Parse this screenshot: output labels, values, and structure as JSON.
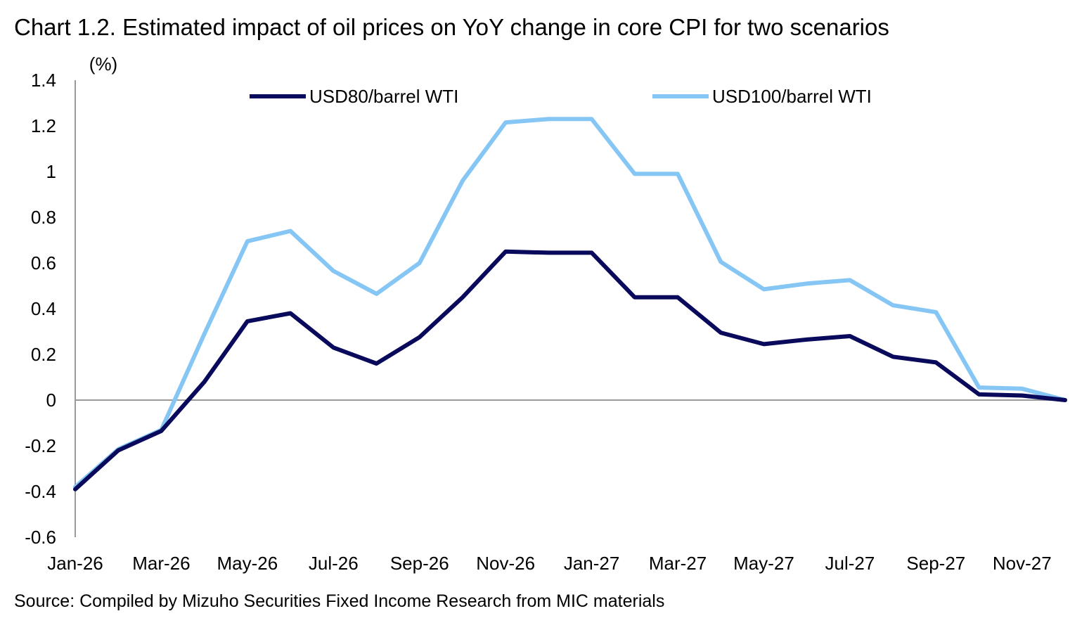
{
  "title": "Chart 1.2. Estimated impact of oil prices on YoY change in core CPI for two scenarios",
  "source": "Source: Compiled by Mizuho Securities Fixed Income Research from MIC materials",
  "chart_data": {
    "type": "line",
    "title": "Chart 1.2. Estimated impact of oil prices on YoY change in core CPI for two scenarios",
    "ylabel": "(%)",
    "xlabel": "",
    "ylim": [
      -0.6,
      1.4
    ],
    "yticks": [
      -0.6,
      -0.4,
      -0.2,
      0,
      0.2,
      0.4,
      0.6,
      0.8,
      1,
      1.2,
      1.4
    ],
    "ytick_labels": [
      "-0.6",
      "-0.4",
      "-0.2",
      "0",
      "0.2",
      "0.4",
      "0.6",
      "0.8",
      "1",
      "1.2",
      "1.4"
    ],
    "x": [
      "Jan-26",
      "Feb-26",
      "Mar-26",
      "Apr-26",
      "May-26",
      "Jun-26",
      "Jul-26",
      "Aug-26",
      "Sep-26",
      "Oct-26",
      "Nov-26",
      "Dec-26",
      "Jan-27",
      "Feb-27",
      "Mar-27",
      "Apr-27",
      "May-27",
      "Jun-27",
      "Jul-27",
      "Aug-27",
      "Sep-27",
      "Oct-27",
      "Nov-27",
      "Dec-27"
    ],
    "xtick_labels": [
      "Jan-26",
      "Mar-26",
      "May-26",
      "Jul-26",
      "Sep-26",
      "Nov-26",
      "Jan-27",
      "Mar-27",
      "May-27",
      "Jul-27",
      "Sep-27",
      "Nov-27"
    ],
    "grid": false,
    "legend_position": "top",
    "series": [
      {
        "name": "USD80/barrel WTI",
        "color": "#0a0a5c",
        "values": [
          -0.39,
          -0.22,
          -0.135,
          0.08,
          0.345,
          0.38,
          0.23,
          0.16,
          0.275,
          0.45,
          0.65,
          0.645,
          0.645,
          0.45,
          0.45,
          0.295,
          0.245,
          0.265,
          0.28,
          0.19,
          0.165,
          0.025,
          0.02,
          0.0
        ]
      },
      {
        "name": "USD100/barrel WTI",
        "color": "#85c6f5",
        "values": [
          -0.38,
          -0.215,
          -0.13,
          0.29,
          0.695,
          0.74,
          0.565,
          0.465,
          0.6,
          0.96,
          1.215,
          1.23,
          1.23,
          0.99,
          0.99,
          0.605,
          0.485,
          0.51,
          0.525,
          0.415,
          0.385,
          0.055,
          0.05,
          0.0
        ]
      }
    ]
  }
}
